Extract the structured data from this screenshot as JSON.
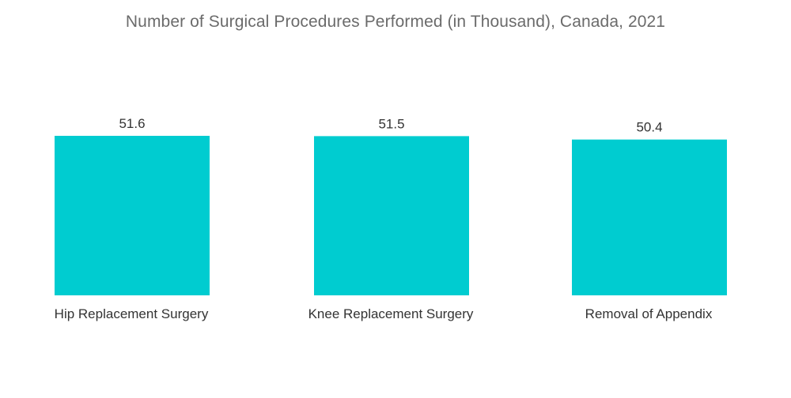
{
  "chart_data": {
    "type": "bar",
    "title": "Number of Surgical Procedures Performed (in Thousand), Canada, 2021",
    "categories": [
      "Hip Replacement Surgery",
      "Knee Replacement Surgery",
      "Removal of Appendix"
    ],
    "values": [
      51.6,
      51.5,
      50.4
    ],
    "value_labels": [
      "51.6",
      "51.5",
      "50.4"
    ],
    "xlabel": "",
    "ylabel": "",
    "ylim": [
      0,
      51.6
    ],
    "grid": false,
    "legend": "none",
    "bar_color": "#00CCD0"
  }
}
